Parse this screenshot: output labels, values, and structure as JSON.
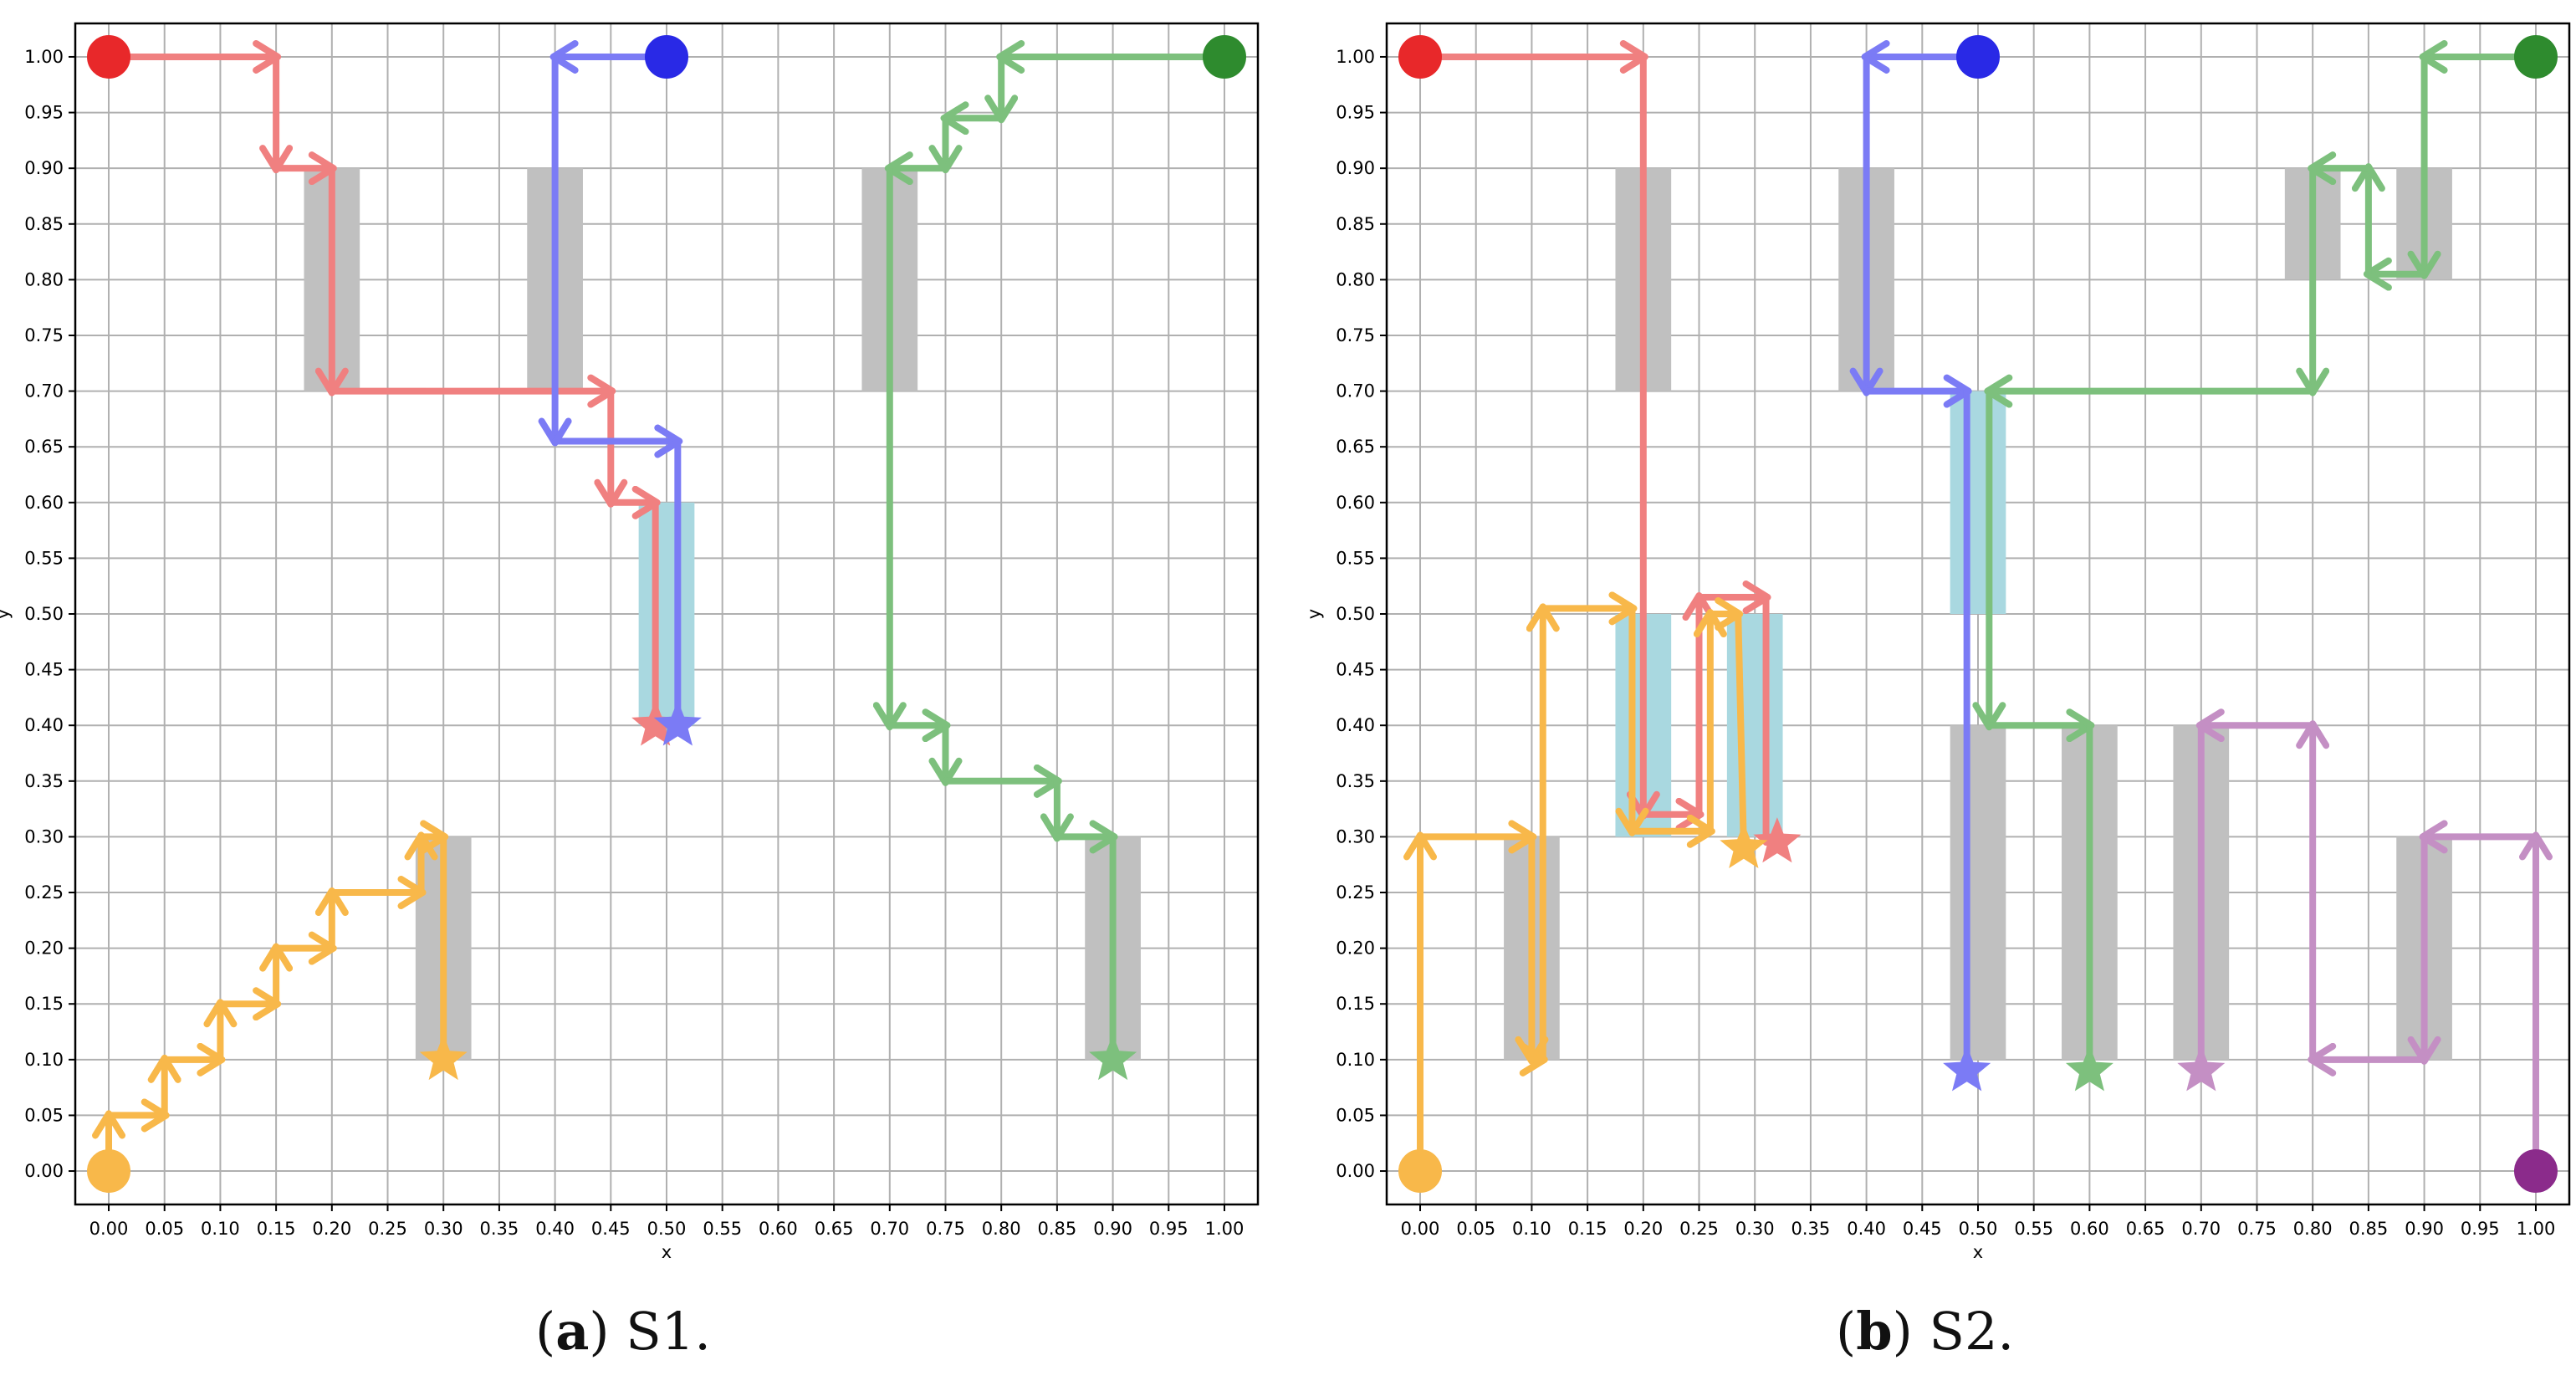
{
  "captions": [
    {
      "label": "a",
      "text": "S1."
    },
    {
      "label": "b",
      "text": "S2."
    }
  ],
  "chart_data": [
    {
      "type": "scatter",
      "panel": "a",
      "xlabel": "x",
      "ylabel": "y",
      "xlim": [
        -0.03,
        1.03
      ],
      "ylim": [
        -0.03,
        1.03
      ],
      "xticks": [
        "0.00",
        "0.05",
        "0.10",
        "0.15",
        "0.20",
        "0.25",
        "0.30",
        "0.35",
        "0.40",
        "0.45",
        "0.50",
        "0.55",
        "0.60",
        "0.65",
        "0.70",
        "0.75",
        "0.80",
        "0.85",
        "0.90",
        "0.95",
        "1.00"
      ],
      "yticks": [
        "0.00",
        "0.05",
        "0.10",
        "0.15",
        "0.20",
        "0.25",
        "0.30",
        "0.35",
        "0.40",
        "0.45",
        "0.50",
        "0.55",
        "0.60",
        "0.65",
        "0.70",
        "0.75",
        "0.80",
        "0.85",
        "0.90",
        "0.95",
        "1.00"
      ],
      "grid": true,
      "obstacles": [
        {
          "x0": 0.175,
          "x1": 0.225,
          "y0": 0.7,
          "y1": 0.9
        },
        {
          "x0": 0.375,
          "x1": 0.425,
          "y0": 0.7,
          "y1": 0.9
        },
        {
          "x0": 0.675,
          "x1": 0.725,
          "y0": 0.7,
          "y1": 0.9
        },
        {
          "x0": 0.275,
          "x1": 0.325,
          "y0": 0.1,
          "y1": 0.3
        },
        {
          "x0": 0.875,
          "x1": 0.925,
          "y0": 0.1,
          "y1": 0.3
        }
      ],
      "zones": [
        {
          "x0": 0.475,
          "x1": 0.525,
          "y0": 0.4,
          "y1": 0.6
        }
      ],
      "agents": [
        {
          "color": "#f08080",
          "start_color": "#e8282a",
          "start": [
            0.0,
            1.0
          ],
          "goal": [
            0.49,
            0.4
          ],
          "path": [
            [
              0.0,
              1.0
            ],
            [
              0.15,
              1.0
            ],
            [
              0.15,
              0.9
            ],
            [
              0.2,
              0.9
            ],
            [
              0.2,
              0.7
            ],
            [
              0.45,
              0.7
            ],
            [
              0.45,
              0.6
            ],
            [
              0.49,
              0.6
            ],
            [
              0.49,
              0.4
            ]
          ]
        },
        {
          "color": "#7b7bf5",
          "start_color": "#2929e6",
          "start": [
            0.5,
            1.0
          ],
          "goal": [
            0.51,
            0.4
          ],
          "path": [
            [
              0.5,
              1.0
            ],
            [
              0.4,
              1.0
            ],
            [
              0.4,
              0.655
            ],
            [
              0.51,
              0.655
            ],
            [
              0.51,
              0.4
            ]
          ]
        },
        {
          "color": "#7dc07d",
          "start_color": "#2e8b2e",
          "start": [
            1.0,
            1.0
          ],
          "goal": [
            0.9,
            0.1
          ],
          "path": [
            [
              1.0,
              1.0
            ],
            [
              0.8,
              1.0
            ],
            [
              0.8,
              0.945
            ],
            [
              0.75,
              0.945
            ],
            [
              0.75,
              0.9
            ],
            [
              0.7,
              0.9
            ],
            [
              0.7,
              0.4
            ],
            [
              0.75,
              0.4
            ],
            [
              0.75,
              0.35
            ],
            [
              0.85,
              0.35
            ],
            [
              0.85,
              0.3
            ],
            [
              0.9,
              0.3
            ],
            [
              0.9,
              0.1
            ]
          ]
        },
        {
          "color": "#f8b84a",
          "start_color": "#f8b84a",
          "start": [
            0.0,
            0.0
          ],
          "goal": [
            0.3,
            0.1
          ],
          "path": [
            [
              0.0,
              0.0
            ],
            [
              0.0,
              0.05
            ],
            [
              0.05,
              0.05
            ],
            [
              0.05,
              0.1
            ],
            [
              0.1,
              0.1
            ],
            [
              0.1,
              0.15
            ],
            [
              0.15,
              0.15
            ],
            [
              0.15,
              0.2
            ],
            [
              0.2,
              0.2
            ],
            [
              0.2,
              0.25
            ],
            [
              0.28,
              0.25
            ],
            [
              0.28,
              0.3
            ],
            [
              0.3,
              0.3
            ],
            [
              0.3,
              0.1
            ]
          ]
        }
      ]
    },
    {
      "type": "scatter",
      "panel": "b",
      "xlabel": "x",
      "ylabel": "y",
      "xlim": [
        -0.03,
        1.03
      ],
      "ylim": [
        -0.03,
        1.03
      ],
      "xticks": [
        "0.00",
        "0.05",
        "0.10",
        "0.15",
        "0.20",
        "0.25",
        "0.30",
        "0.35",
        "0.40",
        "0.45",
        "0.50",
        "0.55",
        "0.60",
        "0.65",
        "0.70",
        "0.75",
        "0.80",
        "0.85",
        "0.90",
        "0.95",
        "1.00"
      ],
      "yticks": [
        "0.00",
        "0.05",
        "0.10",
        "0.15",
        "0.20",
        "0.25",
        "0.30",
        "0.35",
        "0.40",
        "0.45",
        "0.50",
        "0.55",
        "0.60",
        "0.65",
        "0.70",
        "0.75",
        "0.80",
        "0.85",
        "0.90",
        "0.95",
        "1.00"
      ],
      "grid": true,
      "obstacles": [
        {
          "x0": 0.175,
          "x1": 0.225,
          "y0": 0.7,
          "y1": 0.9
        },
        {
          "x0": 0.375,
          "x1": 0.425,
          "y0": 0.7,
          "y1": 0.9
        },
        {
          "x0": 0.775,
          "x1": 0.825,
          "y0": 0.8,
          "y1": 0.9
        },
        {
          "x0": 0.875,
          "x1": 0.925,
          "y0": 0.8,
          "y1": 0.9
        },
        {
          "x0": 0.075,
          "x1": 0.125,
          "y0": 0.1,
          "y1": 0.3
        },
        {
          "x0": 0.475,
          "x1": 0.525,
          "y0": 0.1,
          "y1": 0.4
        },
        {
          "x0": 0.575,
          "x1": 0.625,
          "y0": 0.1,
          "y1": 0.4
        },
        {
          "x0": 0.675,
          "x1": 0.725,
          "y0": 0.1,
          "y1": 0.4
        },
        {
          "x0": 0.875,
          "x1": 0.925,
          "y0": 0.1,
          "y1": 0.3
        }
      ],
      "zones": [
        {
          "x0": 0.475,
          "x1": 0.525,
          "y0": 0.5,
          "y1": 0.7
        },
        {
          "x0": 0.175,
          "x1": 0.225,
          "y0": 0.3,
          "y1": 0.5
        },
        {
          "x0": 0.275,
          "x1": 0.325,
          "y0": 0.3,
          "y1": 0.5
        }
      ],
      "agents": [
        {
          "color": "#f08080",
          "start_color": "#e8282a",
          "start": [
            0.0,
            1.0
          ],
          "goal": [
            0.32,
            0.295
          ],
          "path": [
            [
              0.0,
              1.0
            ],
            [
              0.2,
              1.0
            ],
            [
              0.2,
              0.32
            ],
            [
              0.25,
              0.32
            ],
            [
              0.25,
              0.515
            ],
            [
              0.31,
              0.515
            ],
            [
              0.31,
              0.295
            ]
          ]
        },
        {
          "color": "#7b7bf5",
          "start_color": "#2929e6",
          "start": [
            0.5,
            1.0
          ],
          "goal": [
            0.49,
            0.09
          ],
          "path": [
            [
              0.5,
              1.0
            ],
            [
              0.4,
              1.0
            ],
            [
              0.4,
              0.7
            ],
            [
              0.49,
              0.7
            ],
            [
              0.49,
              0.09
            ]
          ]
        },
        {
          "color": "#7dc07d",
          "start_color": "#2e8b2e",
          "start": [
            1.0,
            1.0
          ],
          "goal": [
            0.6,
            0.09
          ],
          "path": [
            [
              1.0,
              1.0
            ],
            [
              0.9,
              1.0
            ],
            [
              0.9,
              0.805
            ],
            [
              0.85,
              0.805
            ],
            [
              0.85,
              0.9
            ],
            [
              0.8,
              0.9
            ],
            [
              0.8,
              0.7
            ],
            [
              0.51,
              0.7
            ],
            [
              0.51,
              0.4
            ],
            [
              0.6,
              0.4
            ],
            [
              0.6,
              0.09
            ]
          ]
        },
        {
          "color": "#f8b84a",
          "start_color": "#f8b84a",
          "start": [
            0.0,
            0.0
          ],
          "goal": [
            0.29,
            0.29
          ],
          "path": [
            [
              0.0,
              0.0
            ],
            [
              0.0,
              0.3
            ],
            [
              0.1,
              0.3
            ],
            [
              0.1,
              0.1
            ],
            [
              0.11,
              0.1
            ],
            [
              0.11,
              0.505
            ],
            [
              0.19,
              0.505
            ],
            [
              0.19,
              0.305
            ],
            [
              0.26,
              0.305
            ],
            [
              0.26,
              0.5
            ],
            [
              0.285,
              0.5
            ],
            [
              0.29,
              0.29
            ]
          ]
        },
        {
          "color": "#c48fc4",
          "start_color": "#8b2b8b",
          "start": [
            1.0,
            0.0
          ],
          "goal": [
            0.7,
            0.09
          ],
          "path": [
            [
              1.0,
              0.0
            ],
            [
              1.0,
              0.3
            ],
            [
              0.9,
              0.3
            ],
            [
              0.9,
              0.1
            ],
            [
              0.8,
              0.1
            ],
            [
              0.8,
              0.4
            ],
            [
              0.7,
              0.4
            ],
            [
              0.7,
              0.09
            ]
          ]
        }
      ]
    }
  ]
}
